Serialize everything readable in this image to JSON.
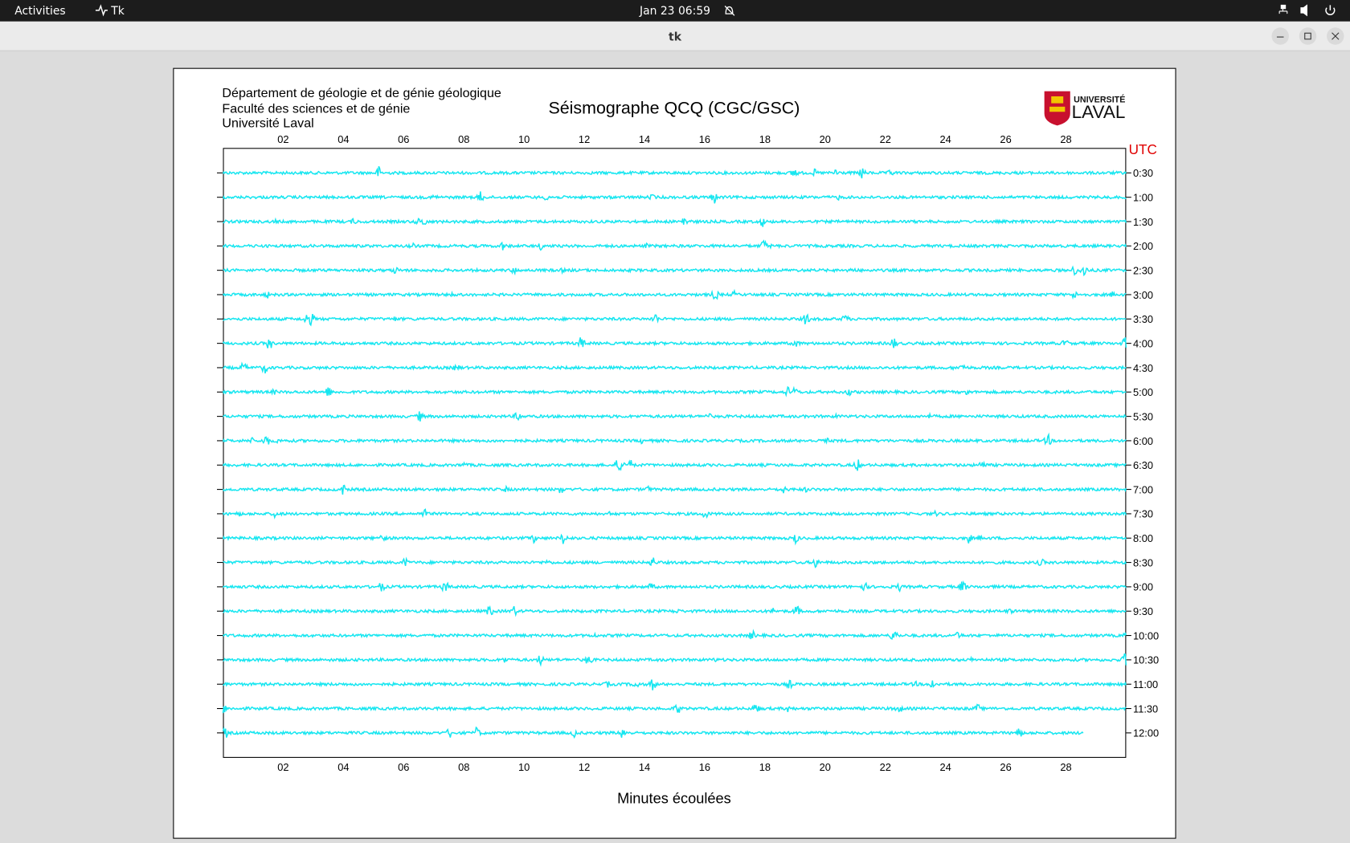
{
  "topbar": {
    "activities": "Activities",
    "app": "Tk",
    "clock": "Jan 23  06:59"
  },
  "window": {
    "title": "tk"
  },
  "seismogram": {
    "header_lines": [
      "Département de géologie et de génie géologique",
      "Faculté des sciences et de génie",
      "Université Laval"
    ],
    "title": "Séismographe QCQ (CGC/GSC)",
    "logo": {
      "top": "UNIVERSITÉ",
      "bottom": "LAVAL"
    },
    "utc_label": "UTC",
    "x_label": "Minutes écoulées",
    "x_ticks": [
      "02",
      "04",
      "06",
      "08",
      "10",
      "12",
      "14",
      "16",
      "18",
      "20",
      "22",
      "24",
      "26",
      "28"
    ],
    "rows": [
      "0:30",
      "1:00",
      "1:30",
      "2:00",
      "2:30",
      "3:00",
      "3:30",
      "4:00",
      "4:30",
      "5:00",
      "5:30",
      "6:00",
      "6:30",
      "7:00",
      "7:30",
      "8:00",
      "8:30",
      "9:00",
      "9:30",
      "10:00",
      "10:30",
      "11:00",
      "11:30",
      "12:00"
    ]
  }
}
